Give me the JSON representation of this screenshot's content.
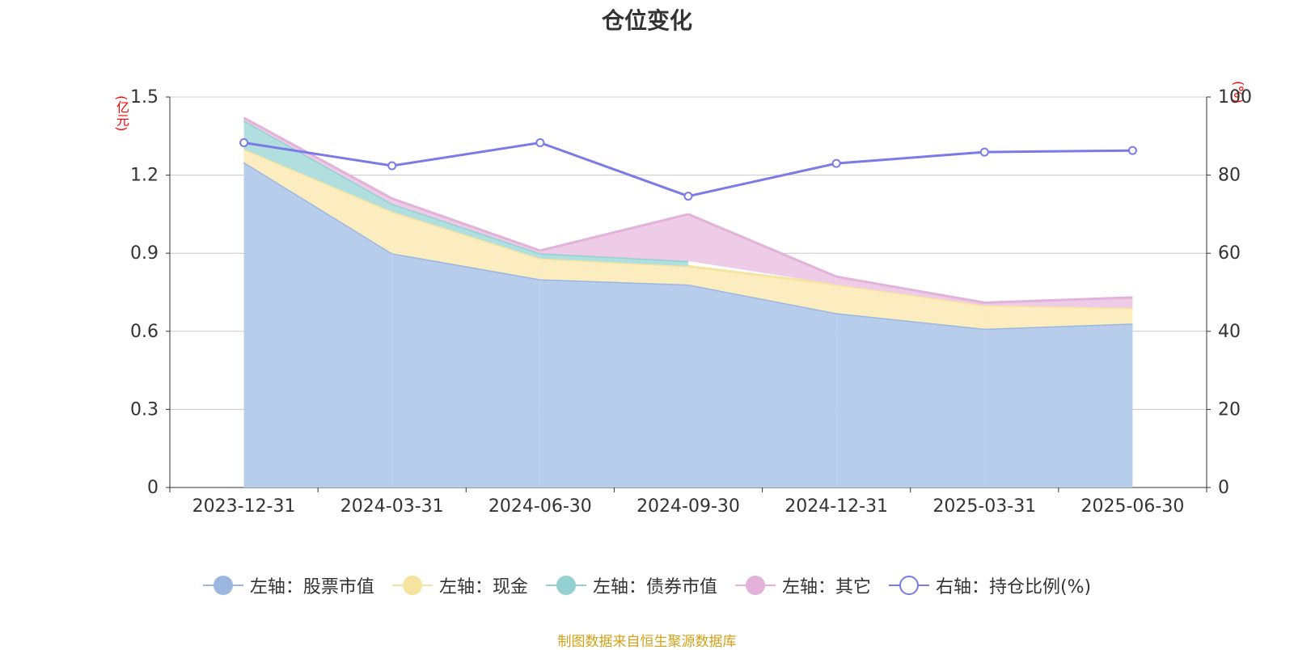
{
  "title": "仓位变化",
  "left_unit": "(亿元)",
  "right_unit": "(%)",
  "source": "制图数据来自恒生聚源数据库",
  "chart_data": {
    "type": "area",
    "title": "仓位变化",
    "categories": [
      "2023-12-31",
      "2024-03-31",
      "2024-06-30",
      "2024-09-30",
      "2024-12-31",
      "2025-03-31",
      "2025-06-30"
    ],
    "left_axis": {
      "unit": "(亿元)",
      "min": 0,
      "max": 1.5,
      "ticks": [
        "0",
        "0.3",
        "0.6",
        "0.9",
        "1.2",
        "1.5"
      ]
    },
    "right_axis": {
      "unit": "(%)",
      "min": 0,
      "max": 100,
      "ticks": [
        "0",
        "20",
        "40",
        "60",
        "80",
        "100"
      ]
    },
    "stacked_series": [
      {
        "name": "左轴：股票市值",
        "color": "#9bb7e0",
        "fill": "#b8cceb",
        "values": [
          1.25,
          0.9,
          0.8,
          0.78,
          0.67,
          0.61,
          0.63
        ]
      },
      {
        "name": "左轴：现金",
        "color": "#f6e3a0",
        "fill": "#fbedc0",
        "values": [
          0.05,
          0.16,
          0.08,
          0.07,
          0.11,
          0.09,
          0.06
        ]
      },
      {
        "name": "左轴：债券市值",
        "color": "#93d1d1",
        "fill": "#b1dfdf",
        "values": [
          0.11,
          0.03,
          0.02,
          0.02,
          null,
          null,
          null
        ]
      },
      {
        "name": "左轴：其它",
        "color": "#e2b2da",
        "fill": "#eecbe6",
        "values": [
          0.01,
          0.02,
          0.01,
          0.18,
          0.03,
          0.01,
          0.04
        ]
      }
    ],
    "line_series": {
      "name": "右轴：持仓比例(%)",
      "color": "#7b7be8",
      "values": [
        88.3,
        82.4,
        88.3,
        74.6,
        83.0,
        85.9,
        86.3
      ]
    },
    "grid": true,
    "legend_position": "bottom"
  }
}
